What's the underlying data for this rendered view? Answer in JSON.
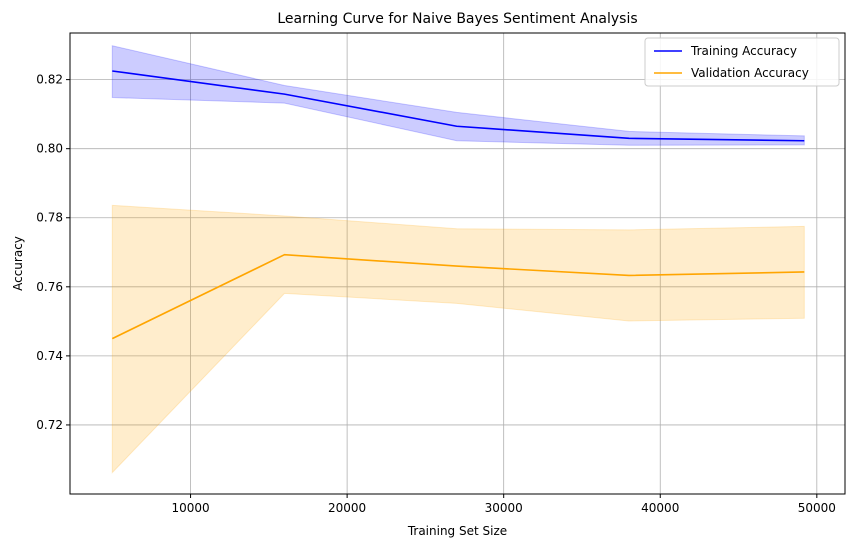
{
  "chart_data": {
    "type": "line",
    "title": "Learning Curve for Naive Bayes Sentiment Analysis",
    "xlabel": "Training Set Size",
    "ylabel": "Accuracy",
    "xlim": [
      2300,
      51800
    ],
    "ylim": [
      0.7,
      0.8335
    ],
    "xticks": [
      10000,
      20000,
      30000,
      40000,
      50000
    ],
    "yticks": [
      0.72,
      0.74,
      0.76,
      0.78,
      0.8,
      0.82
    ],
    "grid": true,
    "legend_position": "top-right",
    "x": [
      5000,
      16000,
      27000,
      38000,
      49200
    ],
    "series": [
      {
        "name": "Training Accuracy",
        "color": "#0000ff",
        "band_color": "#0000ff",
        "values": [
          0.8225,
          0.8158,
          0.8065,
          0.803,
          0.8023
        ],
        "upper": [
          0.8298,
          0.8183,
          0.8105,
          0.805,
          0.8037
        ],
        "lower": [
          0.8148,
          0.8132,
          0.8023,
          0.801,
          0.8011
        ]
      },
      {
        "name": "Validation Accuracy",
        "color": "#ffa500",
        "band_color": "#ffa500",
        "values": [
          0.745,
          0.7693,
          0.766,
          0.7633,
          0.7643
        ],
        "upper": [
          0.7836,
          0.7805,
          0.7768,
          0.7765,
          0.7775
        ],
        "lower": [
          0.7062,
          0.7581,
          0.7552,
          0.7501,
          0.7509
        ]
      }
    ]
  }
}
